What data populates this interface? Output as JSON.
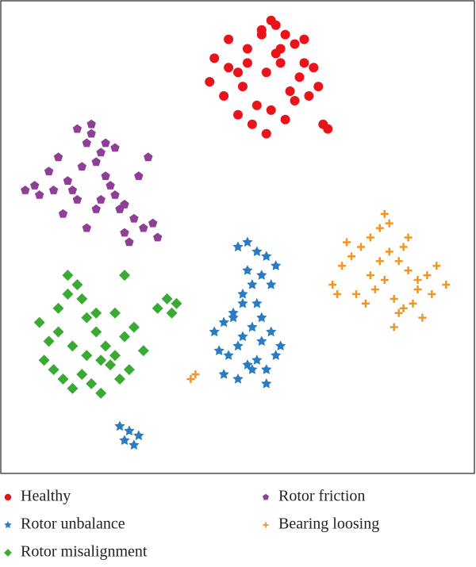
{
  "chart_data": {
    "type": "scatter",
    "xlim": [
      0,
      100
    ],
    "ylim": [
      0,
      100
    ],
    "series": [
      {
        "name": "Healthy",
        "color": "#e8141c",
        "marker": "circle",
        "x": [
          45,
          48,
          50,
          52,
          55,
          57,
          58,
          60,
          62,
          64,
          66,
          68,
          44,
          47,
          51,
          54,
          56,
          59,
          61,
          63,
          65,
          69,
          50,
          53,
          57,
          60,
          62,
          55,
          58,
          52,
          48,
          64,
          67,
          56,
          59
        ],
        "y": [
          88,
          92,
          85,
          90,
          94,
          96,
          89,
          93,
          91,
          87,
          86,
          74,
          83,
          80,
          82,
          78,
          85,
          87,
          81,
          84,
          80,
          73,
          76,
          74,
          77,
          75,
          79,
          93,
          95,
          87,
          86,
          92,
          82,
          72,
          90
        ]
      },
      {
        "name": "Rotor unbalance",
        "color": "#2a7bbf",
        "marker": "star",
        "x": [
          50,
          52,
          54,
          56,
          58,
          55,
          53,
          57,
          51,
          54,
          52,
          45,
          47,
          49,
          51,
          53,
          55,
          57,
          59,
          46,
          48,
          50,
          52,
          54,
          56,
          58,
          47,
          50,
          53,
          56,
          49,
          51,
          55,
          25,
          27,
          29,
          28,
          26
        ],
        "y": [
          48,
          49,
          47,
          46,
          44,
          42,
          40,
          40,
          38,
          36,
          43,
          30,
          32,
          33,
          29,
          31,
          28,
          30,
          27,
          26,
          25,
          27,
          23,
          24,
          22,
          25,
          21,
          20,
          22,
          19,
          34,
          36,
          33,
          10,
          9,
          8,
          6,
          7
        ]
      },
      {
        "name": "Rotor misalignment",
        "color": "#3aaa35",
        "marker": "diamond",
        "x": [
          8,
          10,
          12,
          14,
          16,
          18,
          20,
          22,
          24,
          26,
          28,
          30,
          9,
          11,
          13,
          15,
          17,
          19,
          21,
          23,
          25,
          27,
          12,
          15,
          18,
          21,
          24,
          14,
          17,
          20,
          33,
          35,
          37,
          36,
          26
        ],
        "y": [
          32,
          28,
          35,
          38,
          40,
          33,
          30,
          27,
          25,
          29,
          31,
          26,
          24,
          22,
          20,
          18,
          21,
          19,
          17,
          23,
          20,
          22,
          30,
          27,
          25,
          24,
          34,
          42,
          37,
          34,
          35,
          37,
          36,
          34,
          42
        ]
      },
      {
        "name": "Rotor friction",
        "color": "#8e3f96",
        "marker": "pentagon",
        "x": [
          5,
          7,
          10,
          12,
          14,
          16,
          18,
          19,
          20,
          22,
          24,
          26,
          28,
          30,
          32,
          33,
          13,
          15,
          17,
          21,
          23,
          25,
          27,
          18,
          20,
          22,
          16,
          19,
          24,
          29,
          31,
          11,
          21,
          26,
          8
        ],
        "y": [
          60,
          61,
          64,
          67,
          62,
          58,
          70,
          72,
          66,
          63,
          59,
          57,
          54,
          52,
          53,
          50,
          55,
          60,
          65,
          68,
          61,
          56,
          49,
          52,
          56,
          70,
          73,
          74,
          69,
          63,
          67,
          60,
          58,
          51,
          59
        ]
      },
      {
        "name": "Bearing loosing",
        "color": "#f7941d",
        "marker": "plus",
        "x": [
          70,
          72,
          74,
          76,
          78,
          80,
          82,
          84,
          86,
          88,
          90,
          92,
          94,
          75,
          77,
          79,
          81,
          83,
          85,
          87,
          89,
          91,
          73,
          78,
          82,
          86,
          80,
          84,
          88,
          81,
          85,
          83,
          71,
          40,
          41
        ],
        "y": [
          40,
          44,
          46,
          48,
          50,
          52,
          47,
          45,
          43,
          41,
          42,
          44,
          40,
          38,
          36,
          39,
          41,
          37,
          35,
          36,
          33,
          38,
          49,
          42,
          53,
          50,
          45,
          34,
          39,
          55,
          48,
          31,
          38,
          20,
          21
        ]
      }
    ]
  }
}
